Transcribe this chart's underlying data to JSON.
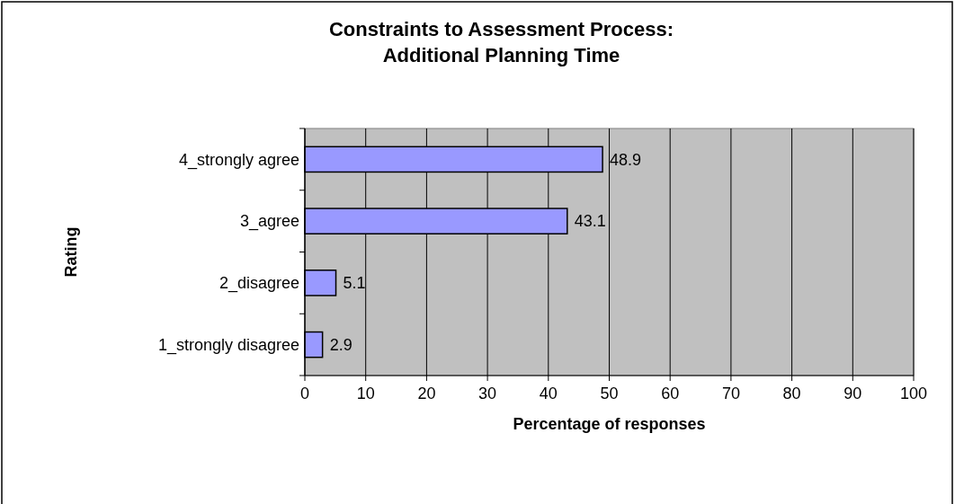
{
  "chart_data": {
    "type": "bar",
    "orientation": "horizontal",
    "title": "Constraints to Assessment Process:\nAdditional Planning Time",
    "xlabel": "Percentage of responses",
    "ylabel": "Rating",
    "categories": [
      "4_strongly agree",
      "3_agree",
      "2_disagree",
      "1_strongly disagree"
    ],
    "values": [
      48.9,
      43.1,
      5.1,
      2.9
    ],
    "color": "#9999ff",
    "data_labels": true,
    "xlim": [
      0,
      100
    ],
    "xticks": [
      0,
      10,
      20,
      30,
      40,
      50,
      60,
      70,
      80,
      90,
      100
    ],
    "grid": "x"
  }
}
